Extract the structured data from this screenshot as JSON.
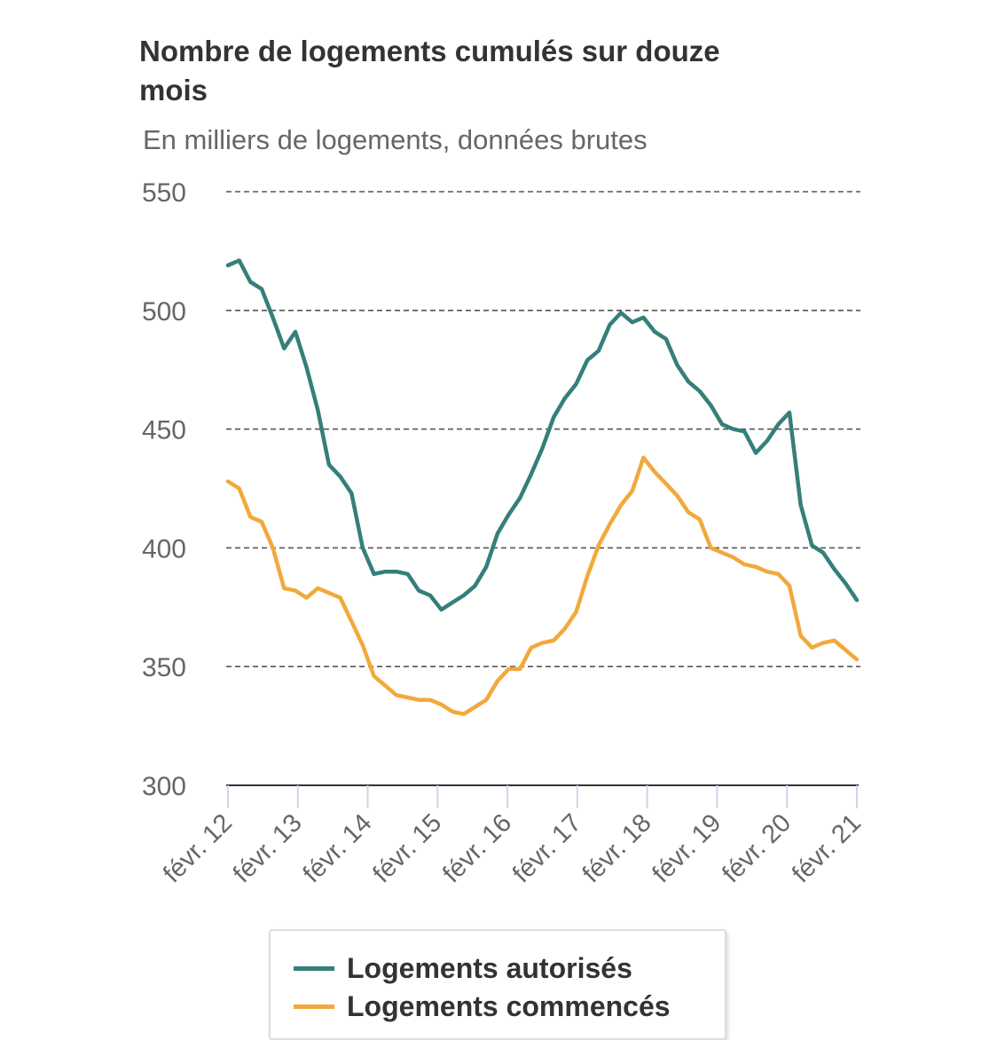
{
  "chart_data": {
    "type": "line",
    "title": "Nombre de logements cumulés sur douze mois",
    "subtitle": "En milliers de logements, données brutes",
    "xlabel": "",
    "ylabel": "",
    "ylim": [
      300,
      550
    ],
    "yticks": [
      550,
      500,
      450,
      400,
      350,
      300
    ],
    "grid": true,
    "legend_position": "bottom",
    "xticks": [
      "févr. 12",
      "févr. 13",
      "févr. 14",
      "févr. 15",
      "févr. 16",
      "févr. 17",
      "févr. 18",
      "févr. 19",
      "févr. 20",
      "févr. 21"
    ],
    "x_start": "févr. 12",
    "x_end": "févr. 21",
    "x_step": "2 mois",
    "series": [
      {
        "name": "Logements autorisés",
        "color": "#357f7a",
        "values": [
          519,
          521,
          512,
          509,
          497,
          484,
          491,
          476,
          458,
          435,
          430,
          423,
          400,
          389,
          390,
          390,
          389,
          382,
          380,
          374,
          377,
          380,
          384,
          392,
          406,
          414,
          421,
          431,
          442,
          455,
          463,
          469,
          479,
          483,
          494,
          499,
          495,
          497,
          491,
          488,
          477,
          470,
          466,
          460,
          452,
          450,
          449,
          440,
          445,
          452,
          457,
          418,
          401,
          398,
          391,
          385,
          378
        ]
      },
      {
        "name": "Logements commencés",
        "color": "#f2a93b",
        "values": [
          428,
          425,
          413,
          411,
          400,
          383,
          382,
          379,
          383,
          381,
          379,
          369,
          359,
          346,
          342,
          338,
          337,
          336,
          336,
          334,
          331,
          330,
          333,
          336,
          344,
          349,
          349,
          358,
          360,
          361,
          366,
          373,
          388,
          401,
          410,
          418,
          424,
          438,
          432,
          427,
          422,
          415,
          412,
          400,
          398,
          396,
          393,
          392,
          390,
          389,
          384,
          363,
          358,
          360,
          361,
          357,
          353
        ]
      }
    ]
  }
}
